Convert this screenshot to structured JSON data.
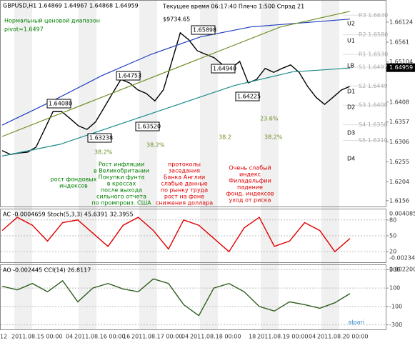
{
  "chart_data": [
    {
      "type": "line",
      "title": "GBPUSD,H1  1.64869 1.64967 1.64868 1.64959",
      "subtitle": "Текущее время 06:17:40 Плечо 1:500 Спрэд 21",
      "balance": "$9734.65",
      "notes": [
        "Нормальный ценовой диапазон",
        "pivot=1.6497"
      ],
      "series": [
        {
          "color": "#000000",
          "values": [
            1.6284,
            1.6274,
            1.6278,
            1.628,
            1.6293,
            1.6338,
            1.6384,
            1.6384,
            1.6366,
            1.6347,
            1.6338,
            1.6357,
            1.6393,
            1.643,
            1.6466,
            1.6457,
            1.6439,
            1.643,
            1.6411,
            1.6439,
            1.6512,
            1.6585,
            1.6567,
            1.6539,
            1.653,
            1.6521,
            1.6503,
            1.6494,
            1.6512,
            1.6457,
            1.6466,
            1.6494,
            1.6484,
            1.6494,
            1.6503,
            1.6484,
            1.6448,
            1.642,
            1.6402,
            1.642,
            1.6439,
            1.6448
          ]
        },
        {
          "color": "#1f3fbf",
          "values": [
            1.6349,
            1.641,
            1.6475,
            1.653,
            1.6575,
            1.66,
            1.661,
            1.662
          ]
        },
        {
          "color": "#6b8e23",
          "values": [
            1.632,
            1.639,
            1.646,
            1.653,
            1.66,
            1.664
          ]
        },
        {
          "color": "#1a8a8a",
          "values": [
            1.627,
            1.63,
            1.635,
            1.64,
            1.645,
            1.6485,
            1.6495
          ]
        }
      ],
      "ylim": [
        1.6141,
        1.6667
      ],
      "yticks": [
        1.66124,
        1.6561,
        1.65104,
        1.6408,
        1.6357,
        1.6306,
        1.6255,
        1.6204,
        1.6156
      ],
      "current_price": 1.64959,
      "price_labels": [
        "1.65898",
        "1.64753",
        "1.64080",
        "1.63238",
        "1.63520",
        "1.64940",
        "1.64225"
      ],
      "fib_labels": [
        "38.2%",
        "38.2%",
        "38.2",
        "23.6%",
        "38.2%"
      ],
      "pivot_levels": [
        {
          "value": 1.663,
          "label": "R3 1.6630"
        },
        {
          "value": 1.658,
          "label": "R2 1.6580"
        },
        {
          "value": 1.653,
          "label": "R1 1.6530"
        },
        {
          "value": 1.6497,
          "label": "S1 1.6497"
        },
        {
          "value": 1.6449,
          "label": "S2 1.6449"
        },
        {
          "value": 1.64,
          "label": "S3 1.6400"
        },
        {
          "value": 1.635,
          "label": "S4 1.6350"
        },
        {
          "value": 1.631,
          "label": "S5 1.6310"
        }
      ],
      "channel_labels": [
        "U2",
        "U1",
        "LB",
        "D1",
        "D2",
        "D3",
        "D4"
      ],
      "annotations": [
        {
          "color": "#008000",
          "lines": [
            "рост фондовых",
            "индексов"
          ]
        },
        {
          "color": "#008000",
          "lines": [
            "Рост инфляции",
            "в Великобритании",
            "Покупки фунта",
            "в кроссах",
            "после выхода",
            "сильного отчета",
            "по промпроиз. США"
          ]
        },
        {
          "color": "#e00000",
          "lines": [
            "протоколы",
            "заседания",
            "Банка Англии",
            "слабые данные",
            "по рынку труда",
            "рост на фоне",
            "снижения доллара"
          ]
        },
        {
          "color": "#e00000",
          "lines": [
            "Очень слабый",
            "индекс",
            "Филадельфии",
            "падение",
            "фонд. индексов",
            "уход от риска"
          ]
        }
      ],
      "x_labels": [
        "12",
        "2011.08.15 00:00",
        "04",
        "2011.08.16 00:00",
        "16",
        "2011.08.17 00:00",
        "04",
        "2011.08.18 00:00",
        "18",
        "2011.08.19 00:00",
        "04",
        "2011.08.20 00:00"
      ]
    },
    {
      "type": "line",
      "title": "AC -0.0004659  Stoch(5,3,3) 45.6391 32.3955",
      "series": [
        {
          "color": "#e00000",
          "values": [
            60,
            85,
            70,
            40,
            75,
            80,
            55,
            30,
            70,
            85,
            60,
            25,
            80,
            70,
            45,
            20,
            65,
            85,
            30,
            40,
            75,
            60,
            20,
            45
          ]
        }
      ],
      "ylim": [
        0,
        100
      ],
      "yticks": [
        20,
        50,
        80
      ],
      "scale_labels": [
        "0.004085",
        "-0.00234"
      ]
    },
    {
      "type": "line",
      "title": "AO -0.002445  CCI(14) 26.8117",
      "series": [
        {
          "color": "#2f5f1f",
          "values": [
            120,
            80,
            150,
            60,
            180,
            -50,
            100,
            150,
            90,
            60,
            200,
            150,
            -80,
            -200,
            100,
            150,
            60,
            -100,
            -150,
            -50,
            -80,
            -120,
            -60,
            40
          ]
        }
      ],
      "ylim": [
        -350,
        350
      ],
      "yticks": [
        300,
        100,
        -100,
        -300
      ],
      "scale_labels": [
        "0.002200"
      ],
      "logo": "alpari"
    }
  ]
}
